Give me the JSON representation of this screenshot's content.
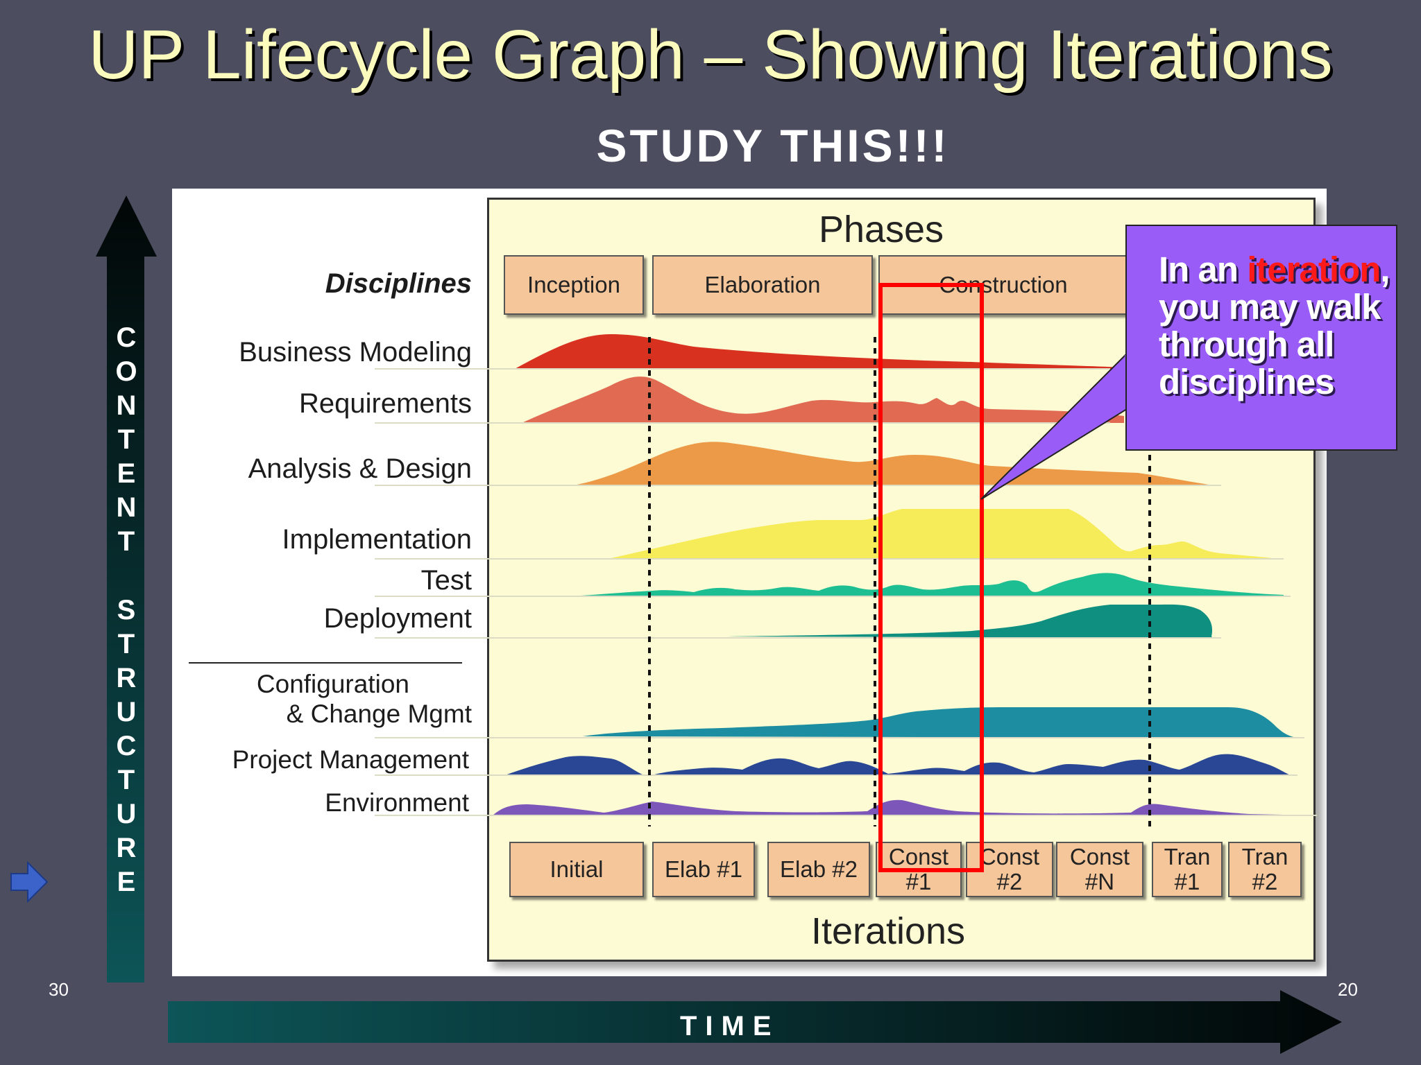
{
  "slide": {
    "title": "UP Lifecycle Graph – Showing Iterations",
    "subtitle": "STUDY THIS!!!",
    "page_left": "30",
    "page_right": "20"
  },
  "axes": {
    "vertical_top": "CONTENT",
    "vertical_bottom": "STRUCTURE",
    "horizontal": "TIME"
  },
  "diagram": {
    "phases_title": "Phases",
    "iterations_title": "Iterations",
    "disciplines_header": "Disciplines",
    "phases": [
      "Inception",
      "Elaboration",
      "Construction"
    ],
    "disciplines": [
      "Business Modeling",
      "Requirements",
      "Analysis & Design",
      "Implementation",
      "Test",
      "Deployment",
      "Configuration",
      "& Change Mgmt",
      "Project Management",
      "Environment"
    ],
    "iterations": [
      {
        "line1": "Initial",
        "line2": ""
      },
      {
        "line1": "Elab #1",
        "line2": ""
      },
      {
        "line1": "Elab #2",
        "line2": ""
      },
      {
        "line1": "Const",
        "line2": "#1"
      },
      {
        "line1": "Const",
        "line2": "#2"
      },
      {
        "line1": "Const",
        "line2": "#N"
      },
      {
        "line1": "Tran",
        "line2": "#1"
      },
      {
        "line1": "Tran",
        "line2": "#2"
      }
    ]
  },
  "callout": {
    "text_before": "In an ",
    "highlight": "iteration",
    "text_after": ", you may walk through all disciplines"
  },
  "colors": {
    "background": "#4c4d5f",
    "title": "#fbfbbe",
    "callout": "#9a5cf6",
    "highlight": "#ff1a1a",
    "iteration_marker": "#ff0000"
  }
}
